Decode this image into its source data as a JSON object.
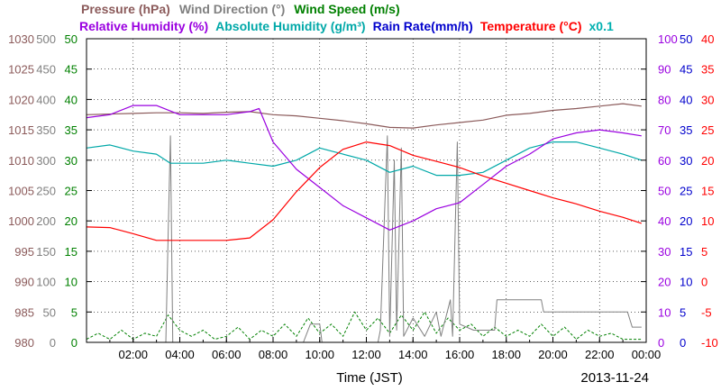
{
  "chart_data": {
    "type": "line",
    "xlabel": "Time (JST)",
    "date": "2013-11-24",
    "x_ticks": [
      "02:00",
      "04:00",
      "06:00",
      "08:00",
      "10:00",
      "12:00",
      "14:00",
      "16:00",
      "18:00",
      "20:00",
      "22:00",
      "00:00"
    ],
    "x_range_hours": [
      0,
      24
    ],
    "grid": true,
    "legend_row1": [
      {
        "name": "Pressure (hPa)",
        "color": "#8b5a5a"
      },
      {
        "name": "Wind Direction (°)",
        "color": "#808080"
      },
      {
        "name": "Wind Speed (m/s)",
        "color": "#008000"
      }
    ],
    "legend_row2": [
      {
        "name": "Relative Humidity (%)",
        "color": "#9a00e0"
      },
      {
        "name": "Absolute Humidity (g/m³)",
        "color": "#00a8a8"
      },
      {
        "name": "Rain Rate(mm/h)",
        "color": "#0000cc"
      },
      {
        "name": "Temperature (°C)",
        "color": "#ff0000"
      },
      {
        "name": "x0.1",
        "color": "#00b0b0"
      }
    ],
    "axes": {
      "pressure": {
        "color": "#8b5a5a",
        "min": 980,
        "max": 1030,
        "ticks": [
          "1030",
          "1025",
          "1020",
          "1015",
          "1010",
          "1005",
          "1000",
          "995",
          "990",
          "985",
          "980"
        ]
      },
      "wind_direction": {
        "color": "#808080",
        "min": 0,
        "max": 500,
        "ticks": [
          "500",
          "450",
          "400",
          "350",
          "300",
          "250",
          "200",
          "150",
          "100",
          "50",
          "0"
        ]
      },
      "wind_speed": {
        "color": "#008000",
        "min": 0,
        "max": 50,
        "ticks": [
          "50",
          "45",
          "40",
          "35",
          "30",
          "25",
          "20",
          "15",
          "10",
          "5",
          "0"
        ]
      },
      "humidity": {
        "color": "#9a00e0",
        "min": 0,
        "max": 100,
        "ticks": [
          "100",
          "90",
          "80",
          "70",
          "60",
          "50",
          "40",
          "30",
          "20",
          "10",
          "0"
        ]
      },
      "rain_rate": {
        "color": "#0000cc",
        "min": 0,
        "max": 50,
        "ticks": [
          "50",
          "45",
          "40",
          "35",
          "30",
          "25",
          "20",
          "15",
          "10",
          "5",
          "0"
        ]
      },
      "temperature": {
        "color": "#ff0000",
        "min": -10,
        "max": 40,
        "ticks": [
          "40",
          "35",
          "30",
          "25",
          "20",
          "15",
          "10",
          "5",
          "0",
          "-5",
          "-10"
        ]
      }
    },
    "series": [
      {
        "name": "Pressure (hPa)",
        "axis": "pressure",
        "color": "#8b5a5a",
        "points": [
          [
            0,
            1017.5
          ],
          [
            1,
            1017.6
          ],
          [
            2,
            1017.7
          ],
          [
            3,
            1017.8
          ],
          [
            4,
            1017.8
          ],
          [
            5,
            1017.7
          ],
          [
            6,
            1017.9
          ],
          [
            7,
            1018.0
          ],
          [
            8,
            1017.5
          ],
          [
            9,
            1017.3
          ],
          [
            10,
            1016.9
          ],
          [
            11,
            1016.5
          ],
          [
            12,
            1016.0
          ],
          [
            13,
            1015.4
          ],
          [
            14,
            1015.3
          ],
          [
            15,
            1015.8
          ],
          [
            16,
            1016.2
          ],
          [
            17,
            1016.6
          ],
          [
            18,
            1017.4
          ],
          [
            19,
            1017.7
          ],
          [
            20,
            1018.2
          ],
          [
            21,
            1018.5
          ],
          [
            22,
            1018.9
          ],
          [
            23,
            1019.3
          ],
          [
            23.8,
            1018.9
          ]
        ]
      },
      {
        "name": "Relative Humidity (%)",
        "axis": "humidity",
        "color": "#9a00e0",
        "points": [
          [
            0,
            74
          ],
          [
            1,
            75
          ],
          [
            2,
            78
          ],
          [
            3,
            78
          ],
          [
            4,
            75
          ],
          [
            5,
            75
          ],
          [
            6,
            75
          ],
          [
            7,
            76
          ],
          [
            7.4,
            77
          ],
          [
            8,
            66
          ],
          [
            9,
            57
          ],
          [
            10,
            51
          ],
          [
            11,
            45
          ],
          [
            12,
            41
          ],
          [
            13,
            37
          ],
          [
            14,
            40
          ],
          [
            15,
            44
          ],
          [
            16,
            46
          ],
          [
            17,
            52
          ],
          [
            18,
            58
          ],
          [
            19,
            62
          ],
          [
            20,
            67
          ],
          [
            21,
            69
          ],
          [
            22,
            70
          ],
          [
            23,
            69
          ],
          [
            23.8,
            68
          ]
        ]
      },
      {
        "name": "Absolute Humidity (g/m³)",
        "axis": "humidity",
        "color": "#00a8a8",
        "points": [
          [
            0,
            64
          ],
          [
            1,
            65
          ],
          [
            2,
            63
          ],
          [
            3,
            62
          ],
          [
            3.6,
            59
          ],
          [
            4,
            59
          ],
          [
            5,
            59
          ],
          [
            6,
            60
          ],
          [
            7,
            59
          ],
          [
            8,
            58
          ],
          [
            9,
            60
          ],
          [
            10,
            64
          ],
          [
            11,
            62
          ],
          [
            12,
            60
          ],
          [
            13,
            56
          ],
          [
            14,
            58
          ],
          [
            15,
            55
          ],
          [
            16,
            55
          ],
          [
            17,
            56
          ],
          [
            18,
            60
          ],
          [
            19,
            64
          ],
          [
            20,
            66
          ],
          [
            21,
            66
          ],
          [
            22,
            64
          ],
          [
            23,
            62
          ],
          [
            23.8,
            60
          ]
        ]
      },
      {
        "name": "Temperature (°C)",
        "axis": "temperature",
        "color": "#ff0000",
        "points": [
          [
            0,
            9.0
          ],
          [
            1,
            8.9
          ],
          [
            2,
            7.9
          ],
          [
            3,
            6.8
          ],
          [
            4,
            6.8
          ],
          [
            5,
            6.8
          ],
          [
            6,
            6.8
          ],
          [
            7,
            7.2
          ],
          [
            8,
            10.2
          ],
          [
            9,
            14.8
          ],
          [
            10,
            18.8
          ],
          [
            11,
            21.8
          ],
          [
            12,
            23.0
          ],
          [
            13,
            22.4
          ],
          [
            14,
            20.8
          ],
          [
            15,
            19.8
          ],
          [
            16,
            18.8
          ],
          [
            17,
            17.4
          ],
          [
            18,
            16.2
          ],
          [
            19,
            15.0
          ],
          [
            20,
            13.8
          ],
          [
            21,
            12.8
          ],
          [
            22,
            11.6
          ],
          [
            23,
            10.6
          ],
          [
            23.8,
            9.6
          ]
        ]
      },
      {
        "name": "Wind Direction (°)",
        "axis": "wind_direction",
        "color": "#808080",
        "points": [
          [
            0,
            0
          ],
          [
            3.4,
            0
          ],
          [
            3.5,
            180
          ],
          [
            3.6,
            340
          ],
          [
            3.7,
            0
          ],
          [
            9.3,
            0
          ],
          [
            9.6,
            30
          ],
          [
            10.0,
            30
          ],
          [
            10.1,
            0
          ],
          [
            12.5,
            0
          ],
          [
            12.6,
            20
          ],
          [
            12.9,
            340
          ],
          [
            13.0,
            10
          ],
          [
            13.2,
            300
          ],
          [
            13.3,
            20
          ],
          [
            13.5,
            320
          ],
          [
            13.6,
            10
          ],
          [
            14.0,
            40
          ],
          [
            14.5,
            10
          ],
          [
            15.0,
            50
          ],
          [
            15.2,
            10
          ],
          [
            15.6,
            70
          ],
          [
            15.7,
            10
          ],
          [
            15.9,
            330
          ],
          [
            16.0,
            30
          ],
          [
            16.6,
            20
          ],
          [
            17.5,
            20
          ],
          [
            17.6,
            70
          ],
          [
            19.5,
            70
          ],
          [
            19.6,
            50
          ],
          [
            23.2,
            50
          ],
          [
            23.4,
            25
          ],
          [
            23.8,
            25
          ]
        ]
      },
      {
        "name": "Wind Speed (m/s)",
        "axis": "wind_speed",
        "color": "#008000",
        "points": [
          [
            0,
            0.5
          ],
          [
            0.5,
            1.5
          ],
          [
            1,
            0.5
          ],
          [
            1.5,
            2
          ],
          [
            2,
            0.5
          ],
          [
            2.5,
            1.5
          ],
          [
            3,
            1
          ],
          [
            3.5,
            4.5
          ],
          [
            4,
            2
          ],
          [
            4.5,
            1
          ],
          [
            5,
            2
          ],
          [
            5.5,
            0.5
          ],
          [
            6,
            1
          ],
          [
            6.5,
            2.5
          ],
          [
            7,
            0.5
          ],
          [
            7.5,
            2
          ],
          [
            8,
            1
          ],
          [
            8.5,
            3
          ],
          [
            9,
            1
          ],
          [
            9.5,
            4
          ],
          [
            10,
            1.5
          ],
          [
            10.5,
            3
          ],
          [
            11,
            1
          ],
          [
            11.5,
            5
          ],
          [
            12,
            2
          ],
          [
            12.5,
            4
          ],
          [
            13,
            1.5
          ],
          [
            13.5,
            4.5
          ],
          [
            14,
            2
          ],
          [
            14.5,
            5
          ],
          [
            15,
            1.5
          ],
          [
            15.5,
            4
          ],
          [
            16,
            2
          ],
          [
            16.5,
            3
          ],
          [
            17,
            1
          ],
          [
            17.5,
            2.5
          ],
          [
            18,
            1
          ],
          [
            18.5,
            2
          ],
          [
            19,
            1
          ],
          [
            19.5,
            3
          ],
          [
            20,
            1
          ],
          [
            20.5,
            2.5
          ],
          [
            21,
            0.5
          ],
          [
            21.5,
            2
          ],
          [
            22,
            1
          ],
          [
            22.5,
            1.5
          ],
          [
            23,
            0.5
          ],
          [
            23.8,
            0.5
          ]
        ]
      }
    ]
  }
}
